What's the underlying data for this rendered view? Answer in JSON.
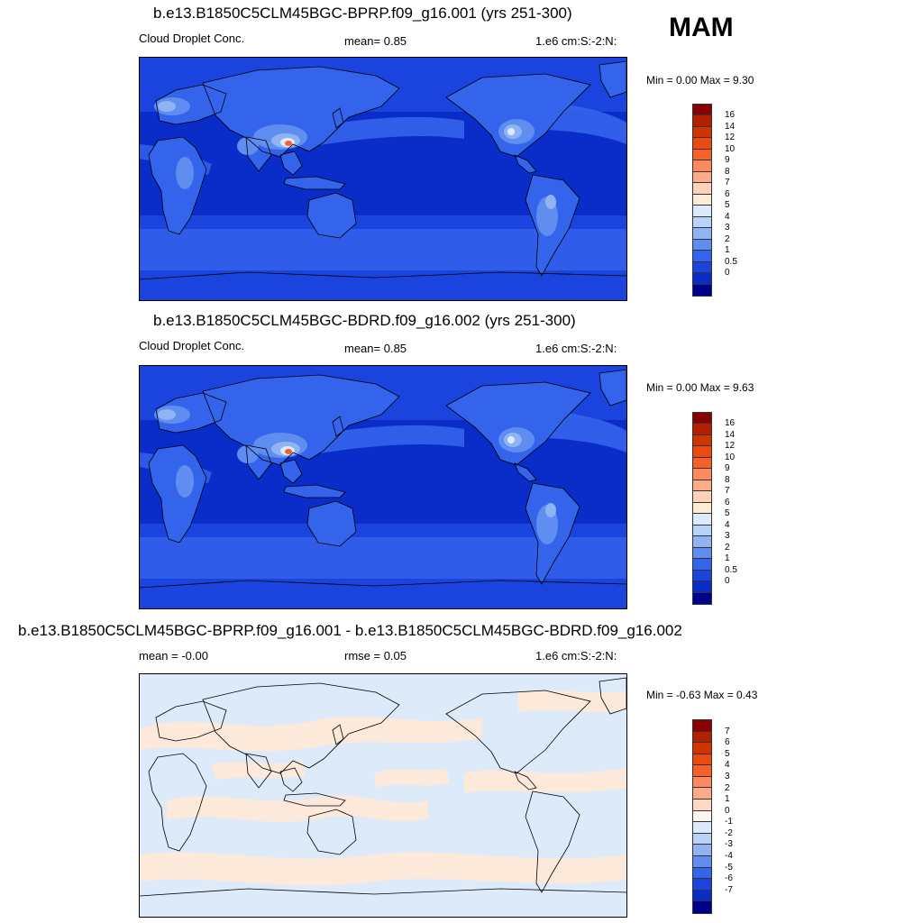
{
  "season": "MAM",
  "panels": [
    {
      "title": "b.e13.B1850C5CLM45BGC-BPRP.f09_g16.001 (yrs 251-300)",
      "left_label": "Cloud Droplet Conc.",
      "mid_label": "mean=   0.85",
      "units": "1.e6 cm:S:-2:N:",
      "minmax": "Min =   0.00 Max =   9.30",
      "colorbar": {
        "ticks": [
          "16",
          "14",
          "12",
          "10",
          "9",
          "8",
          "7",
          "6",
          "5",
          "4",
          "3",
          "2",
          "1",
          "0.5",
          "0"
        ],
        "colors": [
          "#8b0000",
          "#b22000",
          "#d03500",
          "#ec4a10",
          "#f8602a",
          "#fc8a5e",
          "#fdaa88",
          "#fdd2b8",
          "#fdebd8",
          "#ddeafb",
          "#b8d2f8",
          "#8fb3f3",
          "#5f8ef0",
          "#3464ec",
          "#1a44dd",
          "#0a2dc9",
          "#00008b"
        ]
      }
    },
    {
      "title": "b.e13.B1850C5CLM45BGC-BDRD.f09_g16.002 (yrs 251-300)",
      "left_label": "Cloud Droplet Conc.",
      "mid_label": "mean=   0.85",
      "units": "1.e6 cm:S:-2:N:",
      "minmax": "Min =   0.00 Max =   9.63",
      "colorbar": {
        "ticks": [
          "16",
          "14",
          "12",
          "10",
          "9",
          "8",
          "7",
          "6",
          "5",
          "4",
          "3",
          "2",
          "1",
          "0.5",
          "0"
        ],
        "colors": [
          "#8b0000",
          "#b22000",
          "#d03500",
          "#ec4a10",
          "#f8602a",
          "#fc8a5e",
          "#fdaa88",
          "#fdd2b8",
          "#fdebd8",
          "#ddeafb",
          "#b8d2f8",
          "#8fb3f3",
          "#5f8ef0",
          "#3464ec",
          "#1a44dd",
          "#0a2dc9",
          "#00008b"
        ]
      }
    },
    {
      "title": "b.e13.B1850C5CLM45BGC-BPRP.f09_g16.001 - b.e13.B1850C5CLM45BGC-BDRD.f09_g16.002",
      "left_label": "mean =  -0.00",
      "mid_label": "rmse =   0.05",
      "units": "1.e6 cm:S:-2:N:",
      "minmax": "Min =  -0.63 Max =   0.43",
      "colorbar": {
        "ticks": [
          "7",
          "6",
          "5",
          "4",
          "3",
          "2",
          "1",
          "0",
          "-1",
          "-2",
          "-3",
          "-4",
          "-5",
          "-6",
          "-7"
        ],
        "colors": [
          "#8b0000",
          "#b22000",
          "#d03500",
          "#ec4a10",
          "#f8602a",
          "#fc8a5e",
          "#fdaa88",
          "#fdd9c2",
          "#fdf5ee",
          "#ddeafb",
          "#b8d2f8",
          "#8fb3f3",
          "#5f8ef0",
          "#3464ec",
          "#1a44dd",
          "#0a2dc9",
          "#00008b"
        ]
      }
    }
  ],
  "map_colors": {
    "ocean_low": "#0a2dc9",
    "ocean_mid": "#1a44dd",
    "ocean_band": "#3464ec",
    "land_low": "#3464ec",
    "land_mid": "#5f8ef0",
    "land_high": "#8fb3f3",
    "peak_white": "#ddeafb",
    "peak_orange": "#f8602a",
    "diff_pos": "#fde9d9",
    "diff_neg": "#dceafa",
    "coast": "#000000"
  }
}
